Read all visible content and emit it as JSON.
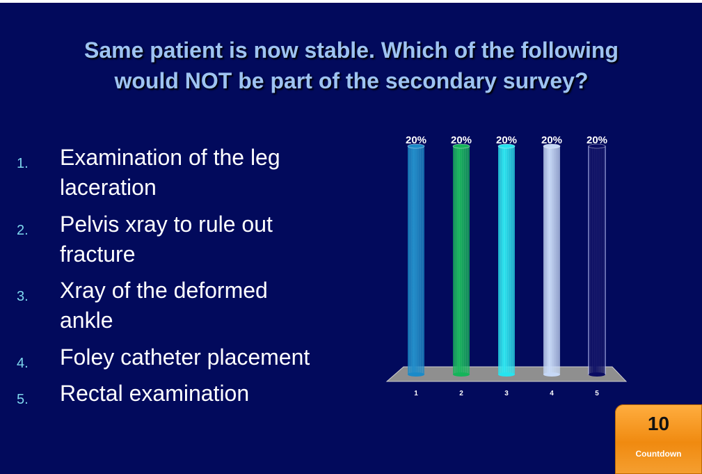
{
  "slide": {
    "title_lines": [
      "Same patient is now stable. Which of the following",
      "would NOT be part of the secondary survey?"
    ],
    "options": [
      {
        "number": "1.",
        "lines": [
          "Examination of the leg",
          "laceration"
        ]
      },
      {
        "number": "2.",
        "lines": [
          "Pelvis xray to rule out",
          "fracture"
        ]
      },
      {
        "number": "3.",
        "lines": [
          "Xray of the deformed",
          "ankle"
        ]
      },
      {
        "number": "4.",
        "lines": [
          "Foley catheter placement"
        ]
      },
      {
        "number": "5.",
        "lines": [
          "Rectal examination"
        ]
      }
    ]
  },
  "chart_data": {
    "type": "bar",
    "categories": [
      "1",
      "2",
      "3",
      "4",
      "5"
    ],
    "values": [
      20,
      20,
      20,
      20,
      20
    ],
    "data_labels": [
      "20%",
      "20%",
      "20%",
      "20%",
      "20%"
    ],
    "ylim": [
      0,
      20
    ],
    "colors": [
      "#1a8ac8",
      "#15b45a",
      "#27e4ef",
      "#c6d8f6",
      "#0a0c62"
    ],
    "title": "",
    "xlabel": "",
    "ylabel": ""
  },
  "countdown": {
    "value": "10",
    "label": "Countdown"
  }
}
